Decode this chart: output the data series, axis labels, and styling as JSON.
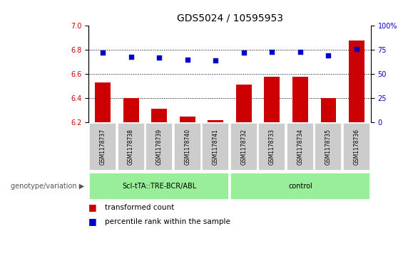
{
  "title": "GDS5024 / 10595953",
  "samples": [
    "GSM1178737",
    "GSM1178738",
    "GSM1178739",
    "GSM1178740",
    "GSM1178741",
    "GSM1178732",
    "GSM1178733",
    "GSM1178734",
    "GSM1178735",
    "GSM1178736"
  ],
  "bar_values": [
    6.53,
    6.4,
    6.31,
    6.25,
    6.22,
    6.51,
    6.58,
    6.58,
    6.4,
    6.88
  ],
  "bar_bottom": 6.2,
  "percentile_values": [
    72,
    68,
    67,
    65,
    64,
    72,
    73,
    73,
    69,
    76
  ],
  "bar_color": "#cc0000",
  "dot_color": "#0000cc",
  "ylim_left": [
    6.2,
    7.0
  ],
  "ylim_right": [
    0,
    100
  ],
  "yticks_left": [
    6.2,
    6.4,
    6.6,
    6.8,
    7.0
  ],
  "yticks_right": [
    0,
    25,
    50,
    75,
    100
  ],
  "grid_values": [
    6.4,
    6.6,
    6.8
  ],
  "group1_label": "ScI-tTA::TRE-BCR/ABL",
  "group2_label": "control",
  "group1_count": 5,
  "group2_count": 5,
  "group_color": "#99ee99",
  "sample_bg_color": "#cccccc",
  "legend_bar_label": "transformed count",
  "legend_dot_label": "percentile rank within the sample",
  "genotype_label": "genotype/variation",
  "title_fontsize": 10,
  "tick_fontsize": 7,
  "sample_fontsize": 5.5,
  "group_fontsize": 7,
  "legend_fontsize": 7.5,
  "genotype_fontsize": 7
}
